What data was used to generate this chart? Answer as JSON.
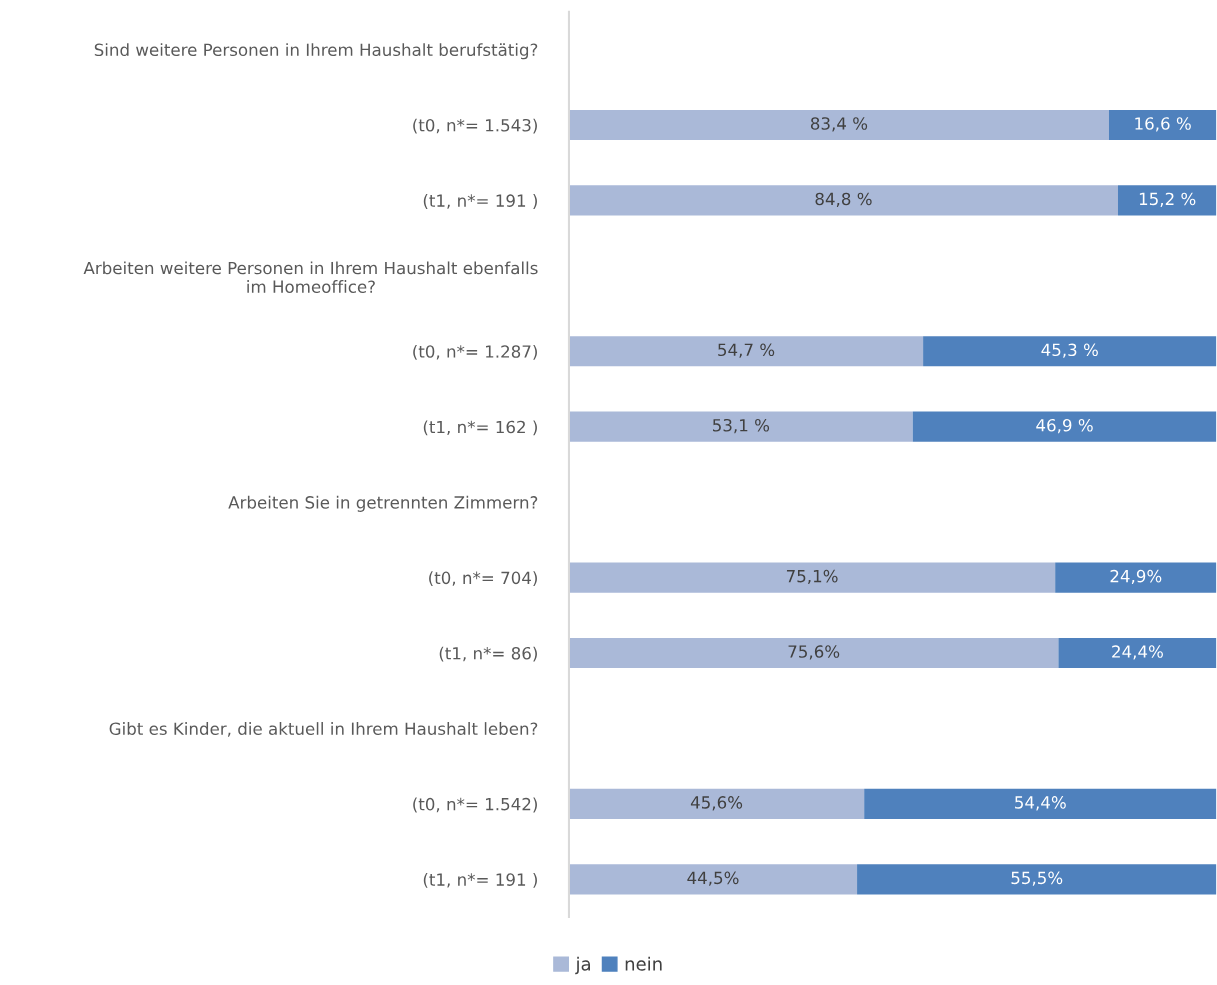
{
  "chart_data": {
    "type": "bar",
    "orientation": "horizontal",
    "stacked": true,
    "categories": [
      "Sind weitere Personen in Ihrem Haushalt berufstätig?",
      "(t0, n*= 1.543)",
      "(t1, n*= 191 )",
      "Arbeiten weitere Personen in Ihrem Haushalt ebenfalls\nim Homeoffice?",
      "(t0, n*= 1.287)",
      "(t1, n*= 162 )",
      "Arbeiten Sie in getrennten Zimmern?",
      "(t0, n*= 704)",
      "(t1, n*= 86)",
      "Gibt es Kinder, die aktuell in Ihrem Haushalt leben?",
      "(t0, n*= 1.542)",
      "(t1, n*= 191 )"
    ],
    "series": [
      {
        "name": "ja",
        "color": "#aab9d8",
        "values": [
          null,
          83.4,
          84.8,
          null,
          54.7,
          53.1,
          null,
          75.1,
          75.6,
          null,
          45.6,
          44.5
        ],
        "value_labels": [
          null,
          "83,4 %",
          "84,8 %",
          null,
          "54,7 %",
          "53,1 %",
          null,
          "75,1%",
          "75,6%",
          null,
          "45,6%",
          "44,5%"
        ]
      },
      {
        "name": "nein",
        "color": "#4f81bd",
        "values": [
          null,
          16.6,
          15.2,
          null,
          45.3,
          46.9,
          null,
          24.9,
          24.4,
          null,
          54.4,
          55.5
        ],
        "value_labels": [
          null,
          "16,6 %",
          "15,2 %",
          null,
          "45,3 %",
          "46,9 %",
          null,
          "24,9%",
          "24,4%",
          null,
          "54,4%",
          "55,5%"
        ]
      }
    ],
    "xlim": [
      0,
      100
    ],
    "tick_labels": "y",
    "grid": false,
    "legend": "bottom"
  }
}
